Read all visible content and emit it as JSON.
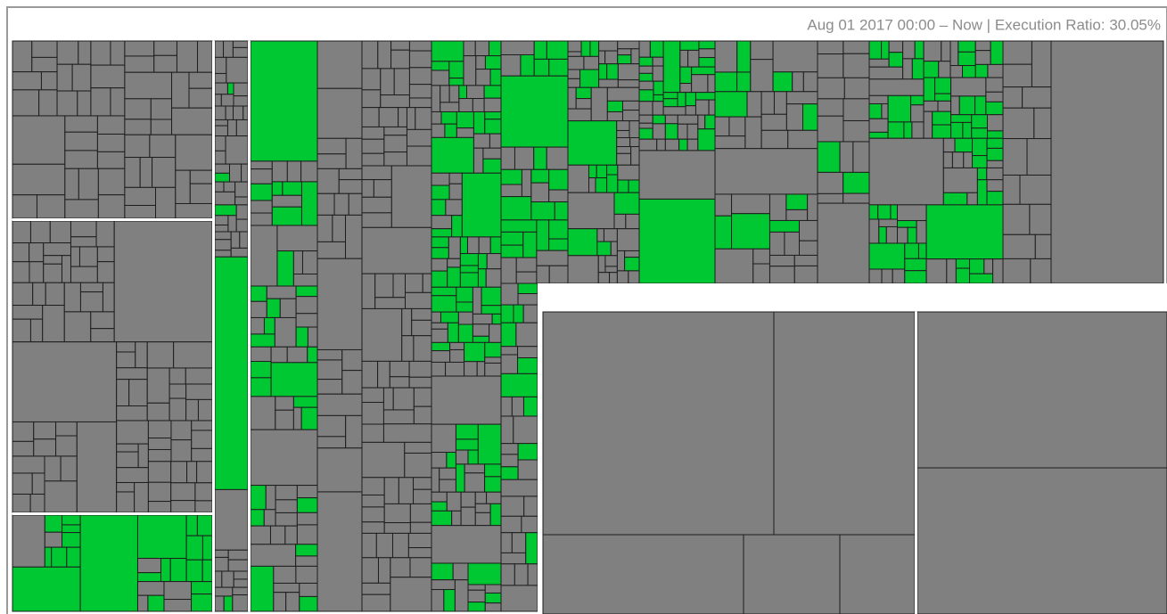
{
  "header": {
    "caption": "Aug 01 2017 00:00 – Now | Execution Ratio: 30.05%"
  }
}
